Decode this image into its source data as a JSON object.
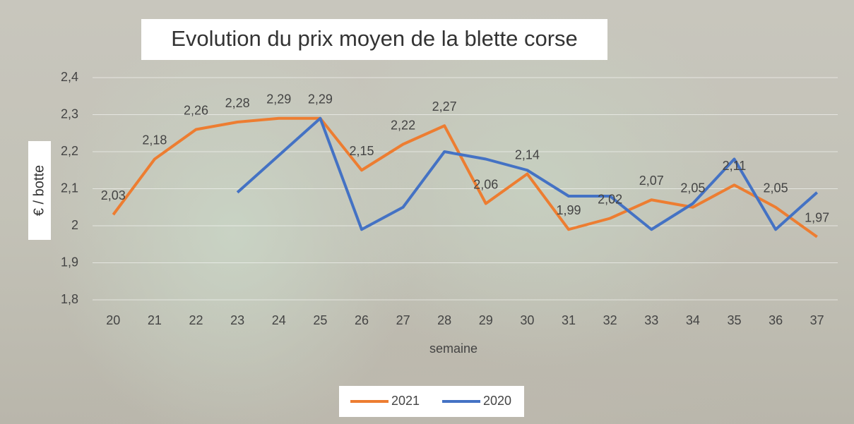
{
  "chart_data": {
    "type": "line",
    "title": "Evolution du prix moyen de la blette corse",
    "x_label": "semaine",
    "y_label": "€ / botte",
    "categories": [
      "20",
      "21",
      "22",
      "23",
      "24",
      "25",
      "26",
      "27",
      "28",
      "29",
      "30",
      "31",
      "32",
      "33",
      "34",
      "35",
      "36",
      "37"
    ],
    "series": [
      {
        "name": "2021",
        "color": "#ED7D31",
        "values": [
          2.03,
          2.18,
          2.26,
          2.28,
          2.29,
          2.29,
          2.15,
          2.22,
          2.27,
          2.06,
          2.14,
          1.99,
          2.02,
          2.07,
          2.05,
          2.11,
          2.05,
          1.97
        ],
        "value_labels": [
          "2,03",
          "2,18",
          "2,26",
          "2,28",
          "2,29",
          "2,29",
          "2,15",
          "2,22",
          "2,27",
          "2,06",
          "2,14",
          "1,99",
          "2,02",
          "2,07",
          "2,05",
          "2,11",
          "2,05",
          "1,97"
        ]
      },
      {
        "name": "2020",
        "color": "#4472C4",
        "values": [
          null,
          null,
          null,
          2.09,
          2.19,
          2.29,
          1.99,
          2.05,
          2.2,
          2.18,
          2.15,
          2.08,
          2.08,
          1.99,
          2.06,
          2.18,
          1.99,
          2.09
        ]
      }
    ],
    "ylim": [
      1.8,
      2.4
    ],
    "yticks": [
      {
        "value": 1.8,
        "label": "1,8"
      },
      {
        "value": 1.9,
        "label": "1,9"
      },
      2,
      {
        "value": 2.1,
        "label": "2,1"
      },
      {
        "value": 2.2,
        "label": "2,2"
      },
      {
        "value": 2.3,
        "label": "2,3"
      },
      {
        "value": 2.4,
        "label": "2,4"
      }
    ],
    "grid": true,
    "legend": "bottom"
  }
}
